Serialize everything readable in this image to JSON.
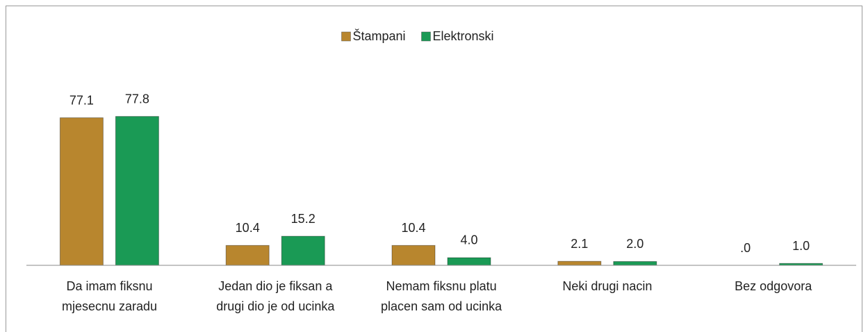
{
  "chart_data": {
    "type": "bar",
    "categories": [
      "Da imam fiksnu\nmjesecnu zaradu",
      "Jedan dio je fiksan a\ndrugi dio je od ucinka",
      "Nemam fiksnu platu\nplacen sam od ucinka",
      "Neki drugi nacin",
      "Bez odgovora"
    ],
    "series": [
      {
        "name": "Štampani",
        "color": "#b8862e",
        "values": [
          77.1,
          10.4,
          10.4,
          2.1,
          0
        ],
        "value_labels": [
          "77.1",
          "10.4",
          "10.4",
          "2.1",
          ".0"
        ]
      },
      {
        "name": "Elektronski",
        "color": "#1a9a55",
        "values": [
          77.8,
          15.2,
          4.0,
          2.0,
          1.0
        ],
        "value_labels": [
          "77.8",
          "15.2",
          "4.0",
          "2.0",
          "1.0"
        ]
      }
    ],
    "ylim": [
      0,
      90
    ],
    "legend": "top"
  }
}
